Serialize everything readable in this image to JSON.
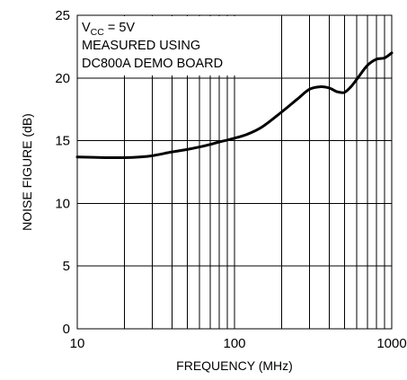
{
  "chart_data": {
    "type": "line",
    "xscale": "log",
    "xlim": [
      10,
      1000
    ],
    "ylim": [
      0,
      25
    ],
    "xlabel": "FREQUENCY (MHz)",
    "ylabel": "NOISE FIGURE (dB)",
    "grid": true,
    "x_ticks": [
      10,
      100,
      1000
    ],
    "x_tick_labels": [
      "10",
      "100",
      "1000"
    ],
    "y_ticks": [
      0,
      5,
      10,
      15,
      20,
      25
    ],
    "y_tick_labels": [
      "0",
      "5",
      "10",
      "15",
      "20",
      "25"
    ],
    "annotation": {
      "line1_main": "V",
      "line1_sub": "CC",
      "line1_rest": " = 5V",
      "line2": "MEASURED USING",
      "line3": "DC800A DEMO BOARD",
      "placement": "top-left"
    },
    "series": [
      {
        "x": [
          10,
          15,
          20,
          25,
          30,
          40,
          50,
          60,
          70,
          80,
          90,
          100,
          120,
          150,
          200,
          250,
          300,
          350,
          400,
          450,
          500,
          550,
          600,
          700,
          800,
          900,
          1000
        ],
        "y": [
          13.7,
          13.65,
          13.65,
          13.7,
          13.8,
          14.1,
          14.3,
          14.5,
          14.7,
          14.9,
          15.05,
          15.2,
          15.5,
          16.1,
          17.3,
          18.3,
          19.1,
          19.3,
          19.2,
          18.9,
          18.85,
          19.3,
          19.9,
          21.0,
          21.5,
          21.6,
          22.0
        ]
      }
    ]
  }
}
